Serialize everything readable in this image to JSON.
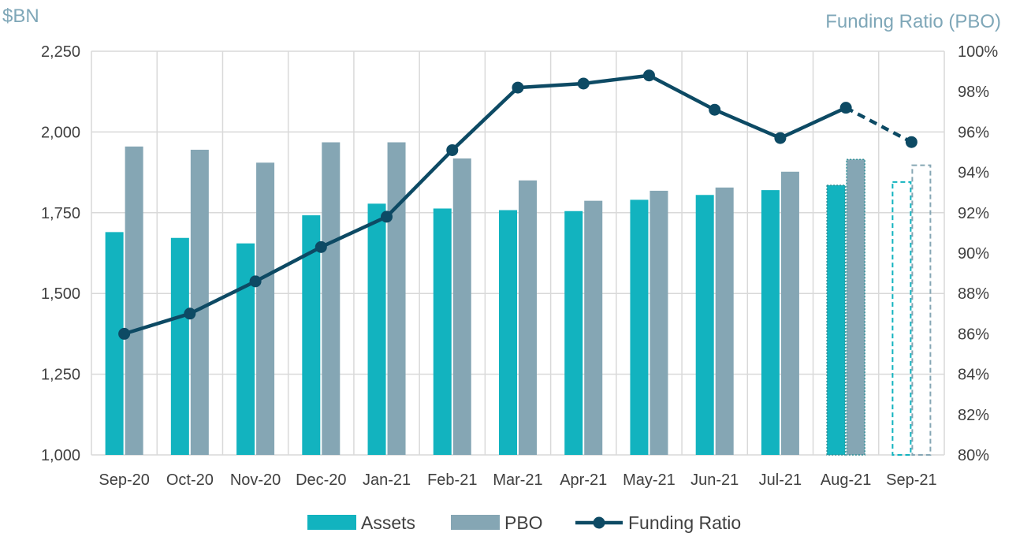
{
  "chart_data": {
    "type": "bar",
    "categories": [
      "Sep-20",
      "Oct-20",
      "Nov-20",
      "Dec-20",
      "Jan-21",
      "Feb-21",
      "Mar-21",
      "Apr-21",
      "May-21",
      "Jun-21",
      "Jul-21",
      "Aug-21",
      "Sep-21"
    ],
    "series": [
      {
        "name": "Assets",
        "type": "bar",
        "axis": "left",
        "values": [
          1690,
          1672,
          1655,
          1742,
          1778,
          1763,
          1758,
          1755,
          1790,
          1805,
          1820,
          1835,
          1845
        ],
        "style": [
          "solid",
          "solid",
          "solid",
          "solid",
          "solid",
          "solid",
          "solid",
          "solid",
          "solid",
          "solid",
          "solid",
          "dotted",
          "dashed-outline"
        ]
      },
      {
        "name": "PBO",
        "type": "bar",
        "axis": "left",
        "values": [
          1955,
          1945,
          1905,
          1968,
          1968,
          1918,
          1850,
          1787,
          1818,
          1828,
          1877,
          1915,
          1897
        ],
        "style": [
          "solid",
          "solid",
          "solid",
          "solid",
          "solid",
          "solid",
          "solid",
          "solid",
          "solid",
          "solid",
          "solid",
          "dotted",
          "dashed-outline"
        ]
      },
      {
        "name": "Funding Ratio",
        "type": "line",
        "axis": "right",
        "values": [
          86.0,
          87.0,
          88.6,
          90.3,
          91.8,
          95.1,
          98.2,
          98.4,
          98.8,
          97.1,
          95.7,
          97.2,
          95.5
        ],
        "dashed_from_index": 11
      }
    ],
    "ylabel": "$BN",
    "ylabel_right": "Funding Ratio (PBO)",
    "ylim": [
      1000,
      2250
    ],
    "ylim_right": [
      80,
      100
    ],
    "yticks": [
      "1,000",
      "1,250",
      "1,500",
      "1,750",
      "2,000",
      "2,250"
    ],
    "yticks_right": [
      "80%",
      "82%",
      "84%",
      "86%",
      "88%",
      "90%",
      "92%",
      "94%",
      "96%",
      "98%",
      "100%"
    ],
    "grid": true,
    "legend_position": "bottom",
    "colors": {
      "Assets": "#12b3bf",
      "PBO": "#85a6b4",
      "Funding Ratio": "#0d4a64",
      "grid": "#d9d9d9"
    }
  }
}
